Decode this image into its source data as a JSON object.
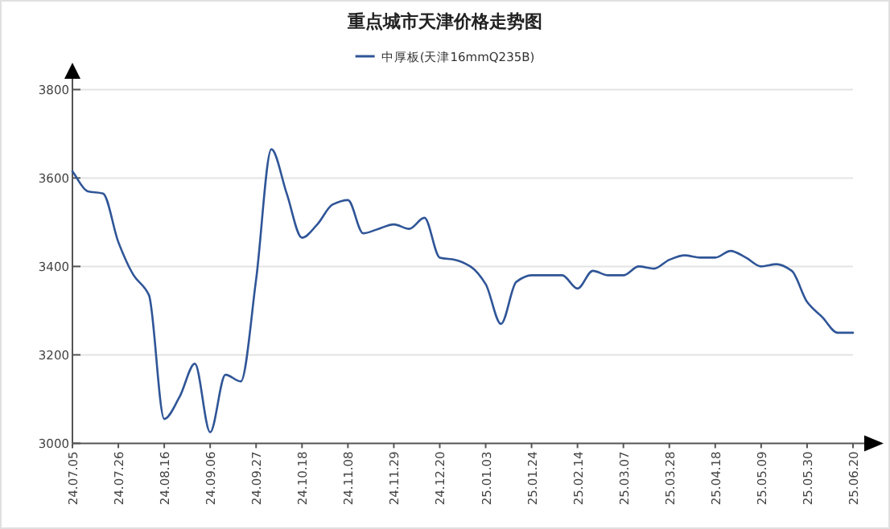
{
  "chart_data": {
    "type": "line",
    "title": "重点城市天津价格走势图",
    "categories": [
      "24.07.05",
      null,
      null,
      "24.07.26",
      null,
      null,
      "24.08.16",
      null,
      null,
      "24.09.06",
      null,
      null,
      "24.09.27",
      null,
      null,
      "24.10.18",
      null,
      null,
      "24.11.08",
      null,
      null,
      "24.11.29",
      null,
      null,
      "24.12.20",
      null,
      null,
      "25.01.03",
      null,
      null,
      "25.01.24",
      null,
      null,
      "25.02.14",
      null,
      null,
      "25.03.07",
      null,
      null,
      "25.03.28",
      null,
      null,
      "25.04.18",
      null,
      null,
      "25.05.09",
      null,
      null,
      "25.05.30",
      null,
      null,
      "25.06.20"
    ],
    "series": [
      {
        "name": "中厚板(天津16mmQ235B)",
        "color": "#2f5597",
        "values": [
          3615,
          3570,
          3565,
          3455,
          3380,
          3335,
          3055,
          3105,
          3180,
          3025,
          3155,
          3140,
          3370,
          3665,
          3565,
          3465,
          3495,
          3540,
          3550,
          3475,
          3485,
          3495,
          3485,
          3510,
          3420,
          3415,
          3400,
          3360,
          3270,
          3365,
          3380,
          3380,
          3380,
          3350,
          3390,
          3380,
          3380,
          3400,
          3395,
          3415,
          3425,
          3420,
          3420,
          3435,
          3420,
          3400,
          3405,
          3390,
          3320,
          3285,
          3250,
          3250
        ]
      }
    ],
    "ylim": [
      3000,
      3800
    ],
    "yticks": [
      3000,
      3200,
      3400,
      3600,
      3800
    ],
    "grid": "y",
    "legend": "top",
    "marker": "none",
    "line_style": "solid"
  }
}
